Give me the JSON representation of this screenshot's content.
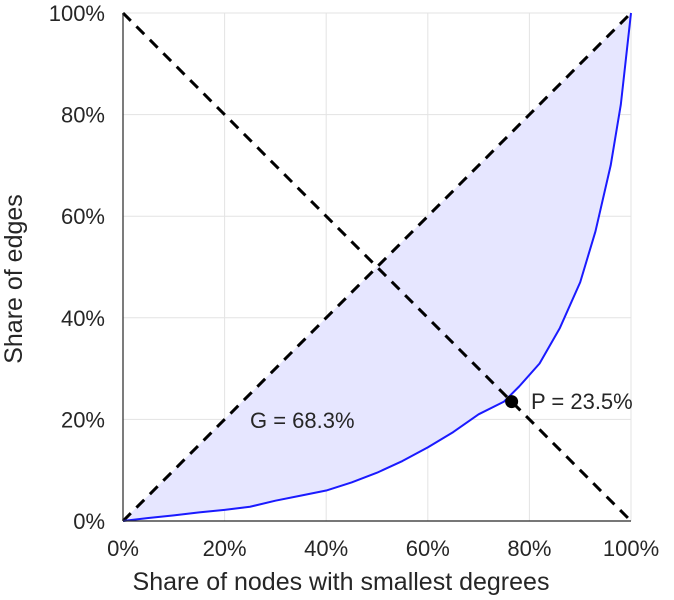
{
  "chart_data": {
    "type": "area",
    "xlabel": "Share of nodes with smallest degrees",
    "ylabel": "Share of edges",
    "xlim": [
      0,
      100
    ],
    "ylim": [
      0,
      100
    ],
    "x_ticks": [
      "0%",
      "20%",
      "40%",
      "60%",
      "80%",
      "100%"
    ],
    "y_ticks": [
      "0%",
      "20%",
      "40%",
      "60%",
      "80%",
      "100%"
    ],
    "grid": true,
    "colors": {
      "curve": "#1a1aff",
      "fill": "#e6e6ff",
      "reference": "#000000"
    },
    "series": [
      {
        "x": [
          0,
          5,
          10,
          15,
          20,
          25,
          30,
          35,
          40,
          45,
          50,
          55,
          60,
          65,
          70,
          75,
          78,
          82,
          86,
          90,
          93,
          96,
          98,
          99,
          100
        ],
        "y": [
          0,
          0.6,
          1.1,
          1.7,
          2.2,
          2.8,
          4.0,
          5.0,
          6.0,
          7.6,
          9.5,
          11.8,
          14.5,
          17.5,
          21.0,
          23.5,
          26.5,
          31,
          38,
          47,
          57,
          70,
          82,
          91,
          100
        ]
      }
    ],
    "reference_lines": [
      {
        "from": [
          0,
          0
        ],
        "to": [
          100,
          100
        ],
        "style": "dashed"
      },
      {
        "from": [
          0,
          100
        ],
        "to": [
          100,
          0
        ],
        "style": "dashed"
      }
    ],
    "point": {
      "x": 76.5,
      "y": 23.5
    },
    "annotations": {
      "gini": "G = 68.3%",
      "p": "P = 23.5%"
    }
  }
}
